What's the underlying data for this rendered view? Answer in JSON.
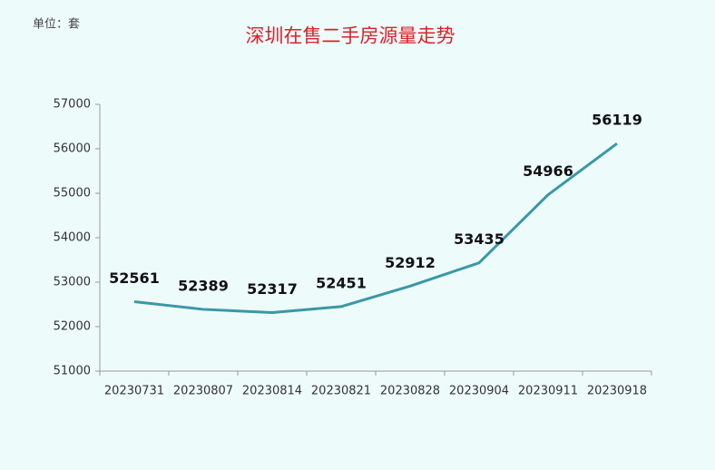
{
  "chart_data": {
    "type": "line",
    "title": "深圳在售二手房源量走势",
    "unit_label": "单位：套",
    "categories": [
      "20230731",
      "20230807",
      "20230814",
      "20230821",
      "20230828",
      "20230904",
      "20230911",
      "20230918"
    ],
    "values": [
      52561,
      52389,
      52317,
      52451,
      52912,
      53435,
      54966,
      56119
    ],
    "color": "#3a98a4",
    "ylim": [
      51000,
      57000
    ],
    "yticks": [
      51000,
      52000,
      53000,
      54000,
      55000,
      56000,
      57000
    ],
    "grid": false
  }
}
